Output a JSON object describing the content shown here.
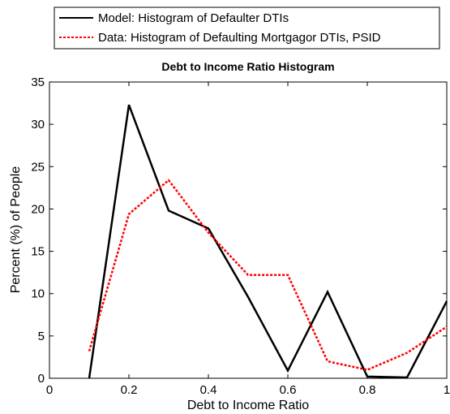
{
  "chart_data": {
    "type": "line",
    "title": "Debt to Income Ratio Histogram",
    "xlabel": "Debt to Income Ratio",
    "ylabel": "Percent (%) of People",
    "xlim": [
      0,
      1
    ],
    "ylim": [
      0,
      35
    ],
    "xticks": [
      0,
      0.2,
      0.4,
      0.6,
      0.8,
      1
    ],
    "xtick_labels": [
      "0",
      "0.2",
      "0.4",
      "0.6",
      "0.8",
      "1"
    ],
    "yticks": [
      0,
      5,
      10,
      15,
      20,
      25,
      30,
      35
    ],
    "ytick_labels": [
      "0",
      "5",
      "10",
      "15",
      "20",
      "25",
      "30",
      "35"
    ],
    "grid": false,
    "legend_position": "top",
    "series": [
      {
        "name": "Model: Histogram of Defaulter DTIs",
        "color": "#000000",
        "style": "solid",
        "x": [
          0.1,
          0.2,
          0.3,
          0.4,
          0.5,
          0.6,
          0.7,
          0.8,
          0.9,
          1.0
        ],
        "y": [
          0,
          32.3,
          19.8,
          17.7,
          9.6,
          0.9,
          10.2,
          0.2,
          0.1,
          9.1
        ]
      },
      {
        "name": "Data: Histogram of Defaulting Mortgagor DTIs, PSID",
        "color": "#ff0000",
        "style": "dotted",
        "x": [
          0.1,
          0.2,
          0.3,
          0.4,
          0.5,
          0.6,
          0.7,
          0.8,
          0.9,
          1.0
        ],
        "y": [
          3.2,
          19.4,
          23.4,
          17.2,
          12.2,
          12.2,
          2.0,
          1.0,
          3.0,
          6.1
        ]
      }
    ]
  }
}
